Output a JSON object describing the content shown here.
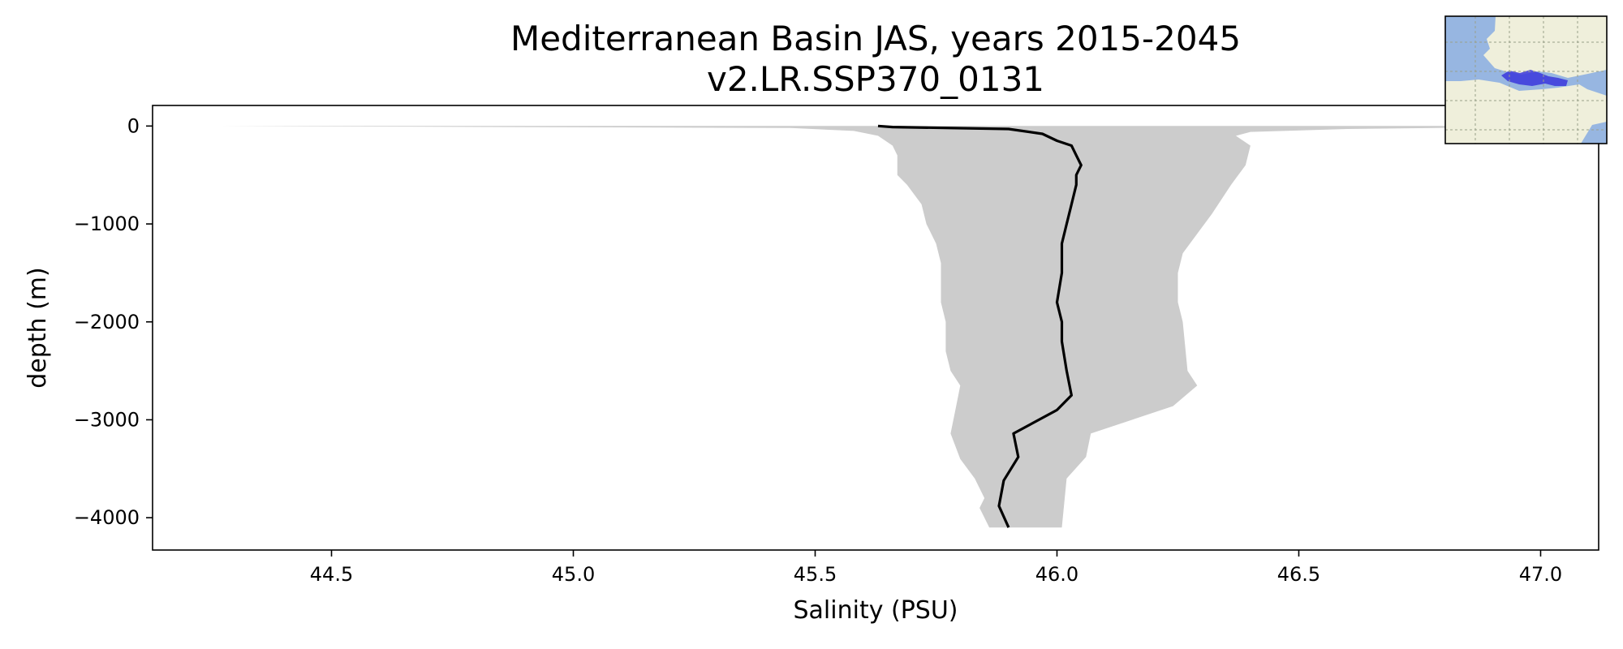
{
  "chart_data": {
    "type": "line",
    "title": "Mediterranean Basin JAS, years 2015-2045",
    "subtitle": "v2.LR.SSP370_0131",
    "xlabel": "Salinity (PSU)",
    "ylabel": "depth (m)",
    "xlim": [
      44.13,
      47.12
    ],
    "ylim": [
      -4330,
      210
    ],
    "xticks": [
      "44.5",
      "45.0",
      "45.5",
      "46.0",
      "46.5",
      "47.0"
    ],
    "xtick_values": [
      44.5,
      45.0,
      45.5,
      46.0,
      46.5,
      47.0
    ],
    "yticks": [
      "0",
      "−1000",
      "−2000",
      "−3000",
      "−4000"
    ],
    "ytick_values": [
      0,
      -1000,
      -2000,
      -3000,
      -4000
    ],
    "grid": false,
    "legend": false,
    "colors": {
      "mean_line": "#000000",
      "range_fill": "#cccccc"
    },
    "series": [
      {
        "values": [
          [
            45.63,
            0
          ],
          [
            45.66,
            -10
          ],
          [
            45.9,
            -30
          ],
          [
            45.97,
            -80
          ],
          [
            46.0,
            -150
          ],
          [
            46.03,
            -200
          ],
          [
            46.04,
            -300
          ],
          [
            46.05,
            -400
          ],
          [
            46.04,
            -500
          ],
          [
            46.04,
            -600
          ],
          [
            46.03,
            -800
          ],
          [
            46.02,
            -1000
          ],
          [
            46.01,
            -1200
          ],
          [
            46.01,
            -1500
          ],
          [
            46.0,
            -1800
          ],
          [
            46.01,
            -2000
          ],
          [
            46.01,
            -2200
          ],
          [
            46.02,
            -2500
          ],
          [
            46.03,
            -2750
          ],
          [
            46.0,
            -2900
          ],
          [
            45.91,
            -3140
          ],
          [
            45.92,
            -3380
          ],
          [
            45.89,
            -3620
          ],
          [
            45.88,
            -3880
          ],
          [
            45.9,
            -4100
          ]
        ]
      }
    ],
    "range": {
      "lower": [
        [
          44.27,
          0
        ],
        [
          45.45,
          -20
        ],
        [
          45.58,
          -50
        ],
        [
          45.63,
          -100
        ],
        [
          45.66,
          -200
        ],
        [
          45.67,
          -300
        ],
        [
          45.67,
          -500
        ],
        [
          45.69,
          -600
        ],
        [
          45.72,
          -800
        ],
        [
          45.73,
          -1000
        ],
        [
          45.75,
          -1200
        ],
        [
          45.76,
          -1400
        ],
        [
          45.76,
          -1800
        ],
        [
          45.77,
          -2000
        ],
        [
          45.77,
          -2300
        ],
        [
          45.78,
          -2500
        ],
        [
          45.8,
          -2650
        ],
        [
          45.79,
          -2900
        ],
        [
          45.78,
          -3140
        ],
        [
          45.8,
          -3400
        ],
        [
          45.83,
          -3600
        ],
        [
          45.85,
          -3800
        ],
        [
          45.84,
          -3900
        ],
        [
          45.86,
          -4100
        ]
      ],
      "upper": [
        [
          47.12,
          0
        ],
        [
          46.6,
          -30
        ],
        [
          46.4,
          -60
        ],
        [
          46.37,
          -100
        ],
        [
          46.4,
          -200
        ],
        [
          46.39,
          -400
        ],
        [
          46.36,
          -600
        ],
        [
          46.32,
          -900
        ],
        [
          46.29,
          -1100
        ],
        [
          46.26,
          -1300
        ],
        [
          46.25,
          -1500
        ],
        [
          46.25,
          -1800
        ],
        [
          46.26,
          -2000
        ],
        [
          46.27,
          -2500
        ],
        [
          46.29,
          -2650
        ],
        [
          46.24,
          -2860
        ],
        [
          46.07,
          -3140
        ],
        [
          46.06,
          -3380
        ],
        [
          46.02,
          -3600
        ],
        [
          46.01,
          -4100
        ]
      ]
    }
  },
  "inset_map": {
    "ocean_color": "#97b6e1",
    "land_color": "#efefdb",
    "region_color": "#3a37dc"
  }
}
